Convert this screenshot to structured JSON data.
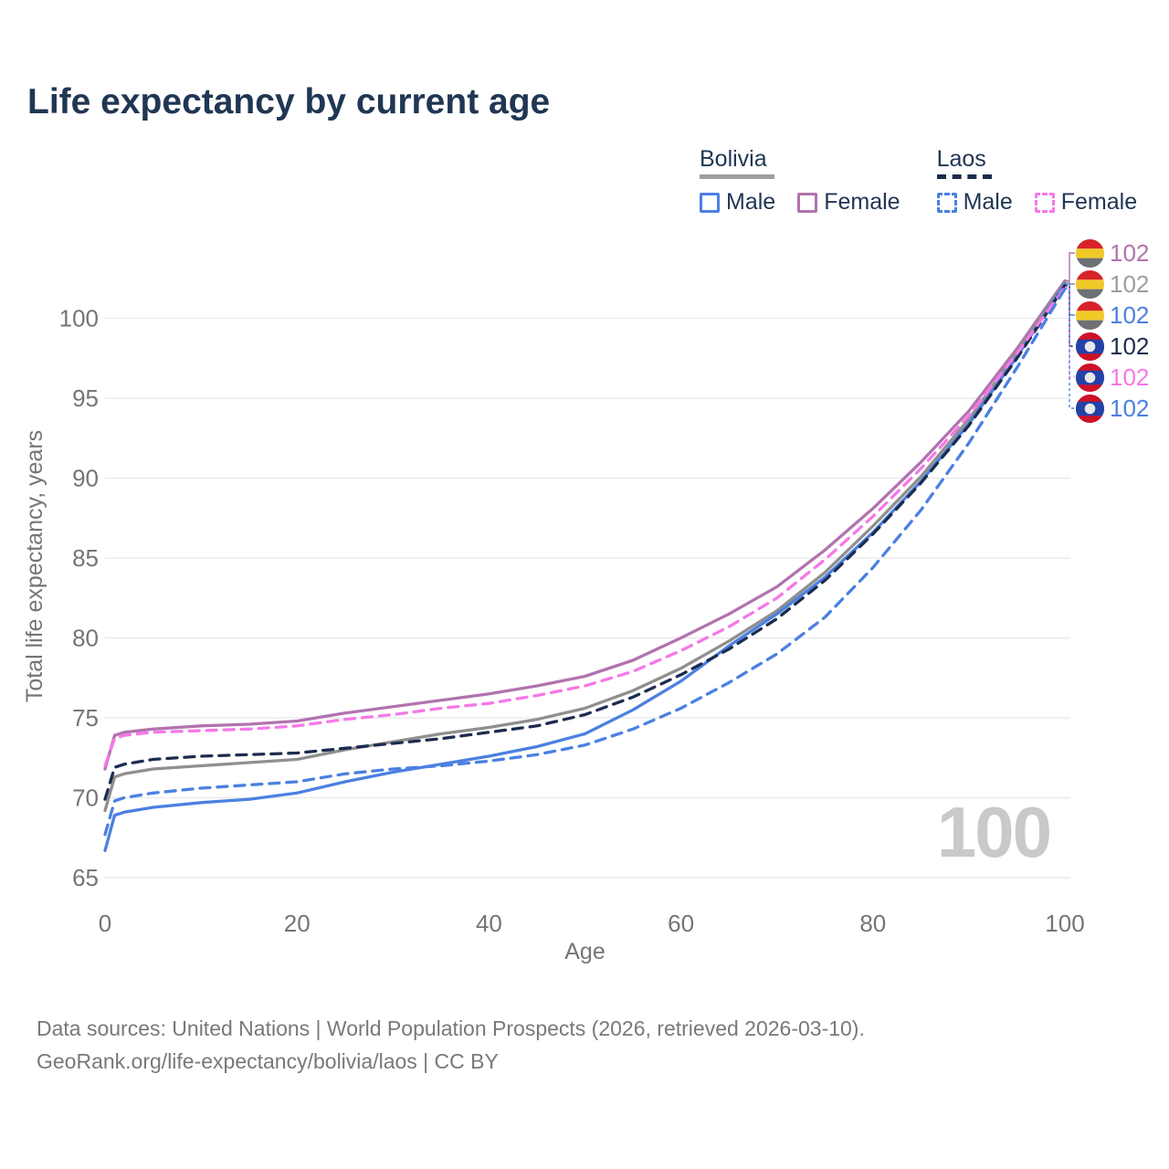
{
  "title": "Life expectancy by current age",
  "legend": {
    "groups": [
      {
        "country": "Bolivia",
        "line_style": "solid",
        "items": [
          {
            "label": "Male",
            "color": "#4b80e1"
          },
          {
            "label": "Female",
            "color": "#b173ae"
          }
        ]
      },
      {
        "country": "Laos",
        "line_style": "dashed",
        "items": [
          {
            "label": "Male",
            "color": "#4b80e1"
          },
          {
            "label": "Female",
            "color": "#f678e8"
          }
        ]
      }
    ]
  },
  "colors": {
    "title_text": "#203653",
    "axis_text": "#757575",
    "gridline": "#e8e8e8",
    "watermark": "#c9c9c9",
    "bolivia_flag": [
      "#d8232a",
      "#f0c929",
      "#6d7173"
    ],
    "laos_flag": {
      "red": "#ce1126",
      "blue": "#2242a8",
      "circle": "#e9e9e9"
    }
  },
  "chart_data": {
    "type": "line",
    "title": "Life expectancy by current age",
    "xlabel": "Age",
    "ylabel": "Total life expectancy, years",
    "xlim": [
      0,
      100
    ],
    "ylim": [
      65,
      102.5
    ],
    "x_ticks": [
      0,
      20,
      40,
      60,
      80,
      100
    ],
    "y_ticks": [
      65,
      70,
      75,
      80,
      85,
      90,
      95,
      100
    ],
    "grid": "horizontal",
    "legend_position": "top-right",
    "watermark": "100",
    "x": [
      0,
      1,
      2,
      5,
      10,
      15,
      20,
      25,
      30,
      35,
      40,
      45,
      50,
      55,
      60,
      65,
      70,
      75,
      80,
      85,
      90,
      95,
      100
    ],
    "series": [
      {
        "name": "Bolivia Female",
        "country": "Bolivia",
        "sex": "Female",
        "color": "#b173ae",
        "label_color": "#b173ae",
        "dash": "solid",
        "flag_icon": "bolivia-flag-icon",
        "end_label": "102",
        "values": [
          71.8,
          73.9,
          74.1,
          74.3,
          74.5,
          74.6,
          74.8,
          75.3,
          75.7,
          76.1,
          76.5,
          77.0,
          77.6,
          78.6,
          80.0,
          81.5,
          83.2,
          85.5,
          88.1,
          91.0,
          94.2,
          98.1,
          102.35
        ]
      },
      {
        "name": "Bolivia Both sexes",
        "country": "Bolivia",
        "sex": "Both",
        "color": "#8f8f8f",
        "label_color": "#9e9e9e",
        "dash": "solid",
        "flag_icon": "bolivia-flag-icon",
        "end_label": "102",
        "values": [
          69.2,
          71.3,
          71.5,
          71.8,
          72.0,
          72.2,
          72.4,
          73.0,
          73.5,
          74.0,
          74.4,
          74.9,
          75.6,
          76.7,
          78.1,
          79.8,
          81.7,
          84.1,
          87.0,
          90.1,
          93.7,
          97.9,
          102.25
        ]
      },
      {
        "name": "Bolivia Male",
        "country": "Bolivia",
        "sex": "Male",
        "color": "#4b80e1",
        "label_color": "#4b80e1",
        "dash": "solid",
        "flag_icon": "bolivia-flag-icon",
        "end_label": "102",
        "values": [
          66.7,
          68.9,
          69.1,
          69.4,
          69.7,
          69.9,
          70.3,
          71.0,
          71.6,
          72.1,
          72.6,
          73.2,
          74.0,
          75.5,
          77.3,
          79.5,
          81.5,
          83.8,
          86.6,
          89.8,
          93.4,
          97.6,
          102.15
        ]
      },
      {
        "name": "Laos Both sexes",
        "country": "Laos",
        "sex": "Both",
        "color": "#1b2c4f",
        "label_color": "#1b2c4f",
        "dash": "dashed",
        "flag_icon": "laos-flag-icon",
        "end_label": "102",
        "values": [
          69.9,
          71.9,
          72.1,
          72.4,
          72.6,
          72.7,
          72.8,
          73.1,
          73.4,
          73.7,
          74.1,
          74.5,
          75.2,
          76.3,
          77.7,
          79.3,
          81.2,
          83.6,
          86.5,
          89.7,
          93.3,
          97.5,
          102.05
        ]
      },
      {
        "name": "Laos Female",
        "country": "Laos",
        "sex": "Female",
        "color": "#f678e8",
        "label_color": "#f678e8",
        "dash": "dashed",
        "flag_icon": "laos-flag-icon",
        "end_label": "102",
        "values": [
          72.0,
          73.7,
          73.9,
          74.1,
          74.2,
          74.3,
          74.5,
          74.9,
          75.2,
          75.6,
          75.9,
          76.4,
          77.0,
          77.9,
          79.2,
          80.7,
          82.5,
          84.9,
          87.6,
          90.6,
          93.9,
          97.8,
          101.95
        ]
      },
      {
        "name": "Laos Male",
        "country": "Laos",
        "sex": "Male",
        "color": "#4b80e1",
        "label_color": "#4b80e1",
        "dash": "dashed",
        "flag_icon": "laos-flag-icon",
        "end_label": "102",
        "values": [
          67.7,
          69.8,
          70.0,
          70.3,
          70.6,
          70.8,
          71.0,
          71.5,
          71.8,
          72.0,
          72.3,
          72.7,
          73.3,
          74.3,
          75.6,
          77.2,
          79.0,
          81.3,
          84.4,
          88.0,
          92.2,
          96.9,
          101.85
        ]
      }
    ]
  },
  "footer": {
    "line1": "Data sources: United Nations | World Population Prospects (2026, retrieved 2026-03-10).",
    "line2": "GeoRank.org/life-expectancy/bolivia/laos | CC BY"
  }
}
